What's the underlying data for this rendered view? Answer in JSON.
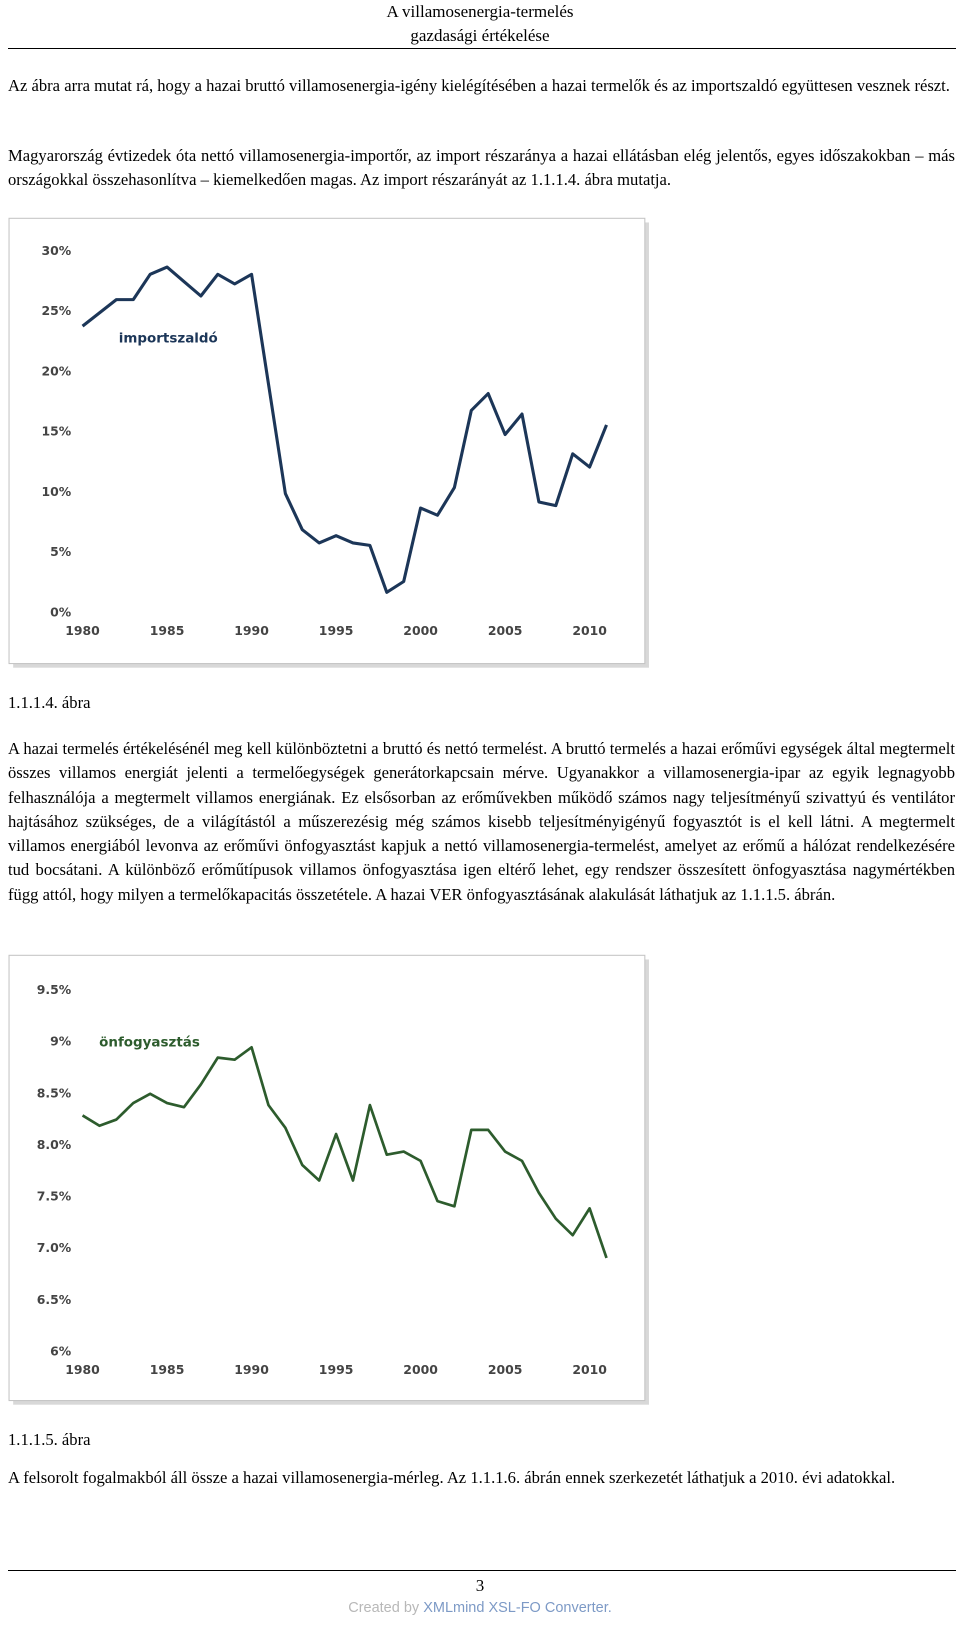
{
  "header": {
    "title_lines": [
      "A villamosenergia-termelés",
      "gazdasági értékelése"
    ]
  },
  "paragraphs": [
    "Az ábra arra mutat rá, hogy a hazai bruttó villamosenergia-igény kielégítésében a hazai termelők és az importszaldó együttesen vesznek részt.",
    "Magyarország évtizedek óta nettó villamosenergia-importőr, az import részaránya a hazai ellátásban elég jelentős, egyes időszakokban – más országokkal összehasonlítva – kiemelkedően magas. Az import részarányát az 1.1.1.4. ábra mutatja.",
    "A hazai termelés értékelésénél meg kell különböztetni a bruttó és nettó termelést. A bruttó termelés a hazai erőművi egységek által megtermelt összes villamos energiát jelenti a termelőegységek generátorkapcsain mérve. Ugyanakkor a villamosenergia-ipar az egyik legnagyobb felhasználója a megtermelt villamos energiának. Ez elsősorban az erőművekben működő számos nagy teljesítményű szivattyú és ventilátor hajtásához szükséges, de a világítástól a műszerezésig még számos kisebb teljesítményigényű fogyasztót is el kell látni. A megtermelt villamos energiából levonva az erőművi önfogyasztást kapjuk a nettó villamosenergia-termelést, amelyet az erőmű a hálózat rendelkezésére tud bocsátani. A különböző erőműtípusok villamos önfogyasztása igen eltérő lehet, egy rendszer összesített önfogyasztása nagymértékben függ attól, hogy milyen a termelőkapacitás összetétele. A hazai VER önfogyasztásának alakulását láthatjuk az 1.1.1.5. ábrán.",
    "A felsorolt fogalmakból áll össze a hazai villamosenergia-mérleg. Az 1.1.1.6. ábrán ennek szerkezetét láthatjuk a 2010. évi adatokkal."
  ],
  "captions": [
    "1.1.1.4. ábra",
    "1.1.1.5. ábra"
  ],
  "chart_data": [
    {
      "type": "line",
      "x": [
        1980,
        1981,
        1982,
        1983,
        1984,
        1985,
        1986,
        1987,
        1988,
        1989,
        1990,
        1991,
        1992,
        1993,
        1994,
        1995,
        1996,
        1997,
        1998,
        1999,
        2000,
        2001,
        2002,
        2003,
        2004,
        2005,
        2006,
        2007,
        2008,
        2009,
        2010,
        2011
      ],
      "series": [
        {
          "name": "importszaldó",
          "color": "#1c3658",
          "values": [
            23.8,
            24.9,
            26.0,
            26.0,
            28.1,
            28.7,
            27.5,
            26.3,
            28.1,
            27.3,
            28.1,
            19.0,
            9.9,
            6.9,
            5.8,
            6.4,
            5.8,
            5.6,
            1.7,
            2.6,
            8.7,
            8.1,
            10.4,
            16.8,
            18.2,
            14.8,
            16.5,
            9.2,
            8.9,
            13.2,
            12.1,
            15.6
          ]
        }
      ],
      "xlim": [
        1980,
        2011
      ],
      "xticks": [
        1980,
        1985,
        1990,
        1995,
        2000,
        2005,
        2010
      ],
      "ylim": [
        0,
        30
      ],
      "yticks": [
        {
          "value": 0,
          "label": "0%"
        },
        {
          "value": 5,
          "label": "5%"
        },
        {
          "value": 10,
          "label": "10%"
        },
        {
          "value": 15,
          "label": "15%"
        },
        {
          "value": 20,
          "label": "20%"
        },
        {
          "value": 25,
          "label": "25%"
        },
        {
          "value": 30,
          "label": "30%"
        }
      ],
      "grid": false
    },
    {
      "type": "line",
      "x": [
        1980,
        1981,
        1982,
        1983,
        1984,
        1985,
        1986,
        1987,
        1988,
        1989,
        1990,
        1991,
        1992,
        1993,
        1994,
        1995,
        1996,
        1997,
        1998,
        1999,
        2000,
        2001,
        2002,
        2003,
        2004,
        2005,
        2006,
        2007,
        2008,
        2009,
        2010,
        2011
      ],
      "series": [
        {
          "name": "önfogyasztás",
          "color": "#2d5c2d",
          "values": [
            8.29,
            8.19,
            8.25,
            8.41,
            8.5,
            8.41,
            8.37,
            8.59,
            8.85,
            8.83,
            8.95,
            8.39,
            8.17,
            7.81,
            7.66,
            8.11,
            7.66,
            8.39,
            7.91,
            7.94,
            7.85,
            7.46,
            7.41,
            8.15,
            8.15,
            7.94,
            7.85,
            7.54,
            7.29,
            7.13,
            7.39,
            6.91
          ]
        }
      ],
      "xlim": [
        1980,
        2011
      ],
      "xticks": [
        1980,
        1985,
        1990,
        1995,
        2000,
        2005,
        2010
      ],
      "ylim": [
        6,
        9.5
      ],
      "yticks": [
        {
          "value": 6,
          "label": "6%"
        },
        {
          "value": 6.5,
          "label": "6.5%"
        },
        {
          "value": 7,
          "label": "7.0%"
        },
        {
          "value": 7.5,
          "label": "7.5%"
        },
        {
          "value": 8,
          "label": "8.0%"
        },
        {
          "value": 8.5,
          "label": "8.5%"
        },
        {
          "value": 9,
          "label": "9%"
        },
        {
          "value": 9.5,
          "label": "9.5%"
        }
      ],
      "grid": false
    }
  ],
  "footer": {
    "page_number": "3",
    "credit_prefix": "Created by",
    "credit_link": "XMLmind XSL-FO Converter."
  }
}
